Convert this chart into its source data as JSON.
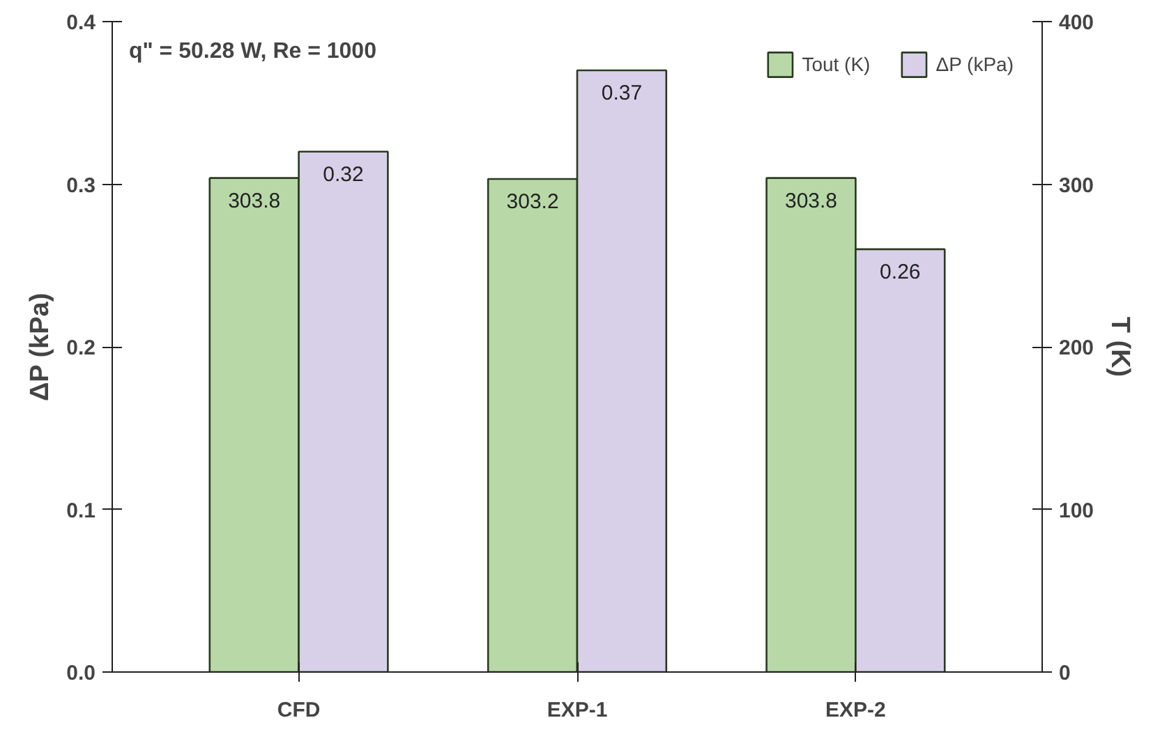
{
  "chart_data": {
    "type": "bar",
    "annotations": [
      "q\" = 50.28 W, Re = 1000"
    ],
    "categories": [
      "CFD",
      "EXP-1",
      "EXP-2"
    ],
    "series": [
      {
        "name": "Tout (K)",
        "color": "#b8d8a8",
        "values": [
          303.8,
          303.2,
          303.8
        ],
        "axis": "y2"
      },
      {
        "name": "ΔP (kPa)",
        "color": "#d8d0e8",
        "values": [
          0.32,
          0.37,
          0.26
        ]
      }
    ],
    "ylabel": "ΔP (kPa)",
    "y2label": "T (K)",
    "ylim": [
      0,
      0.4
    ],
    "yticks": [
      {
        "value": 0,
        "label": "0.0"
      },
      0.1,
      0.2,
      0.3,
      0.4
    ],
    "y2lim": [
      0,
      400
    ],
    "y2ticks": [
      0,
      100,
      200,
      300,
      400
    ],
    "data_labels": true,
    "grid": false,
    "legend": "top right"
  }
}
